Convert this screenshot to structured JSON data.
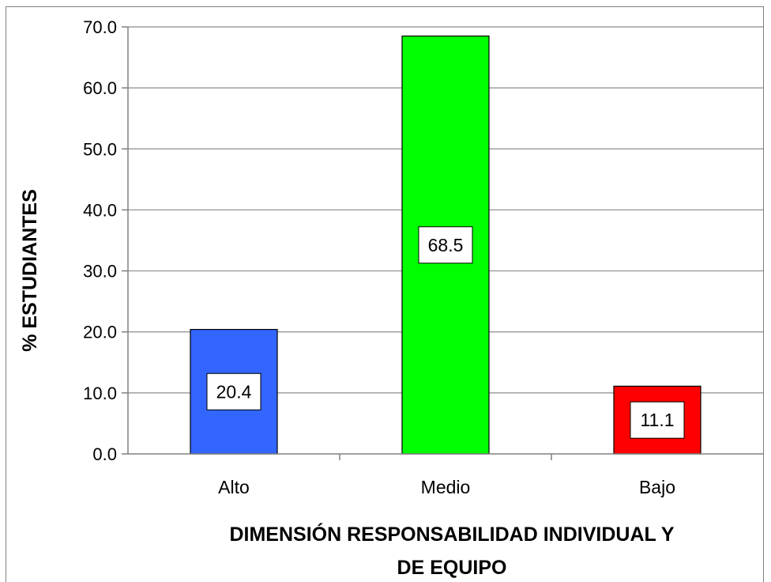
{
  "chart_data": {
    "type": "bar",
    "categories": [
      "Alto",
      "Medio",
      "Bajo"
    ],
    "values": [
      20.4,
      68.5,
      11.1
    ],
    "data_labels": [
      "20.4",
      "68.5",
      "11.1"
    ],
    "colors": [
      "#3366ff",
      "#00ff00",
      "#ff0000"
    ],
    "title": "",
    "xlabel_lines": [
      "DIMENSIÓN RESPONSABILIDAD INDIVIDUAL Y",
      "DE EQUIPO"
    ],
    "ylabel": "% ESTUDIANTES",
    "ylim": [
      0,
      70
    ],
    "yticks": [
      "0.0",
      "10.0",
      "20.0",
      "30.0",
      "40.0",
      "50.0",
      "60.0",
      "70.0"
    ],
    "grid": "horizontal",
    "legend": "none"
  }
}
